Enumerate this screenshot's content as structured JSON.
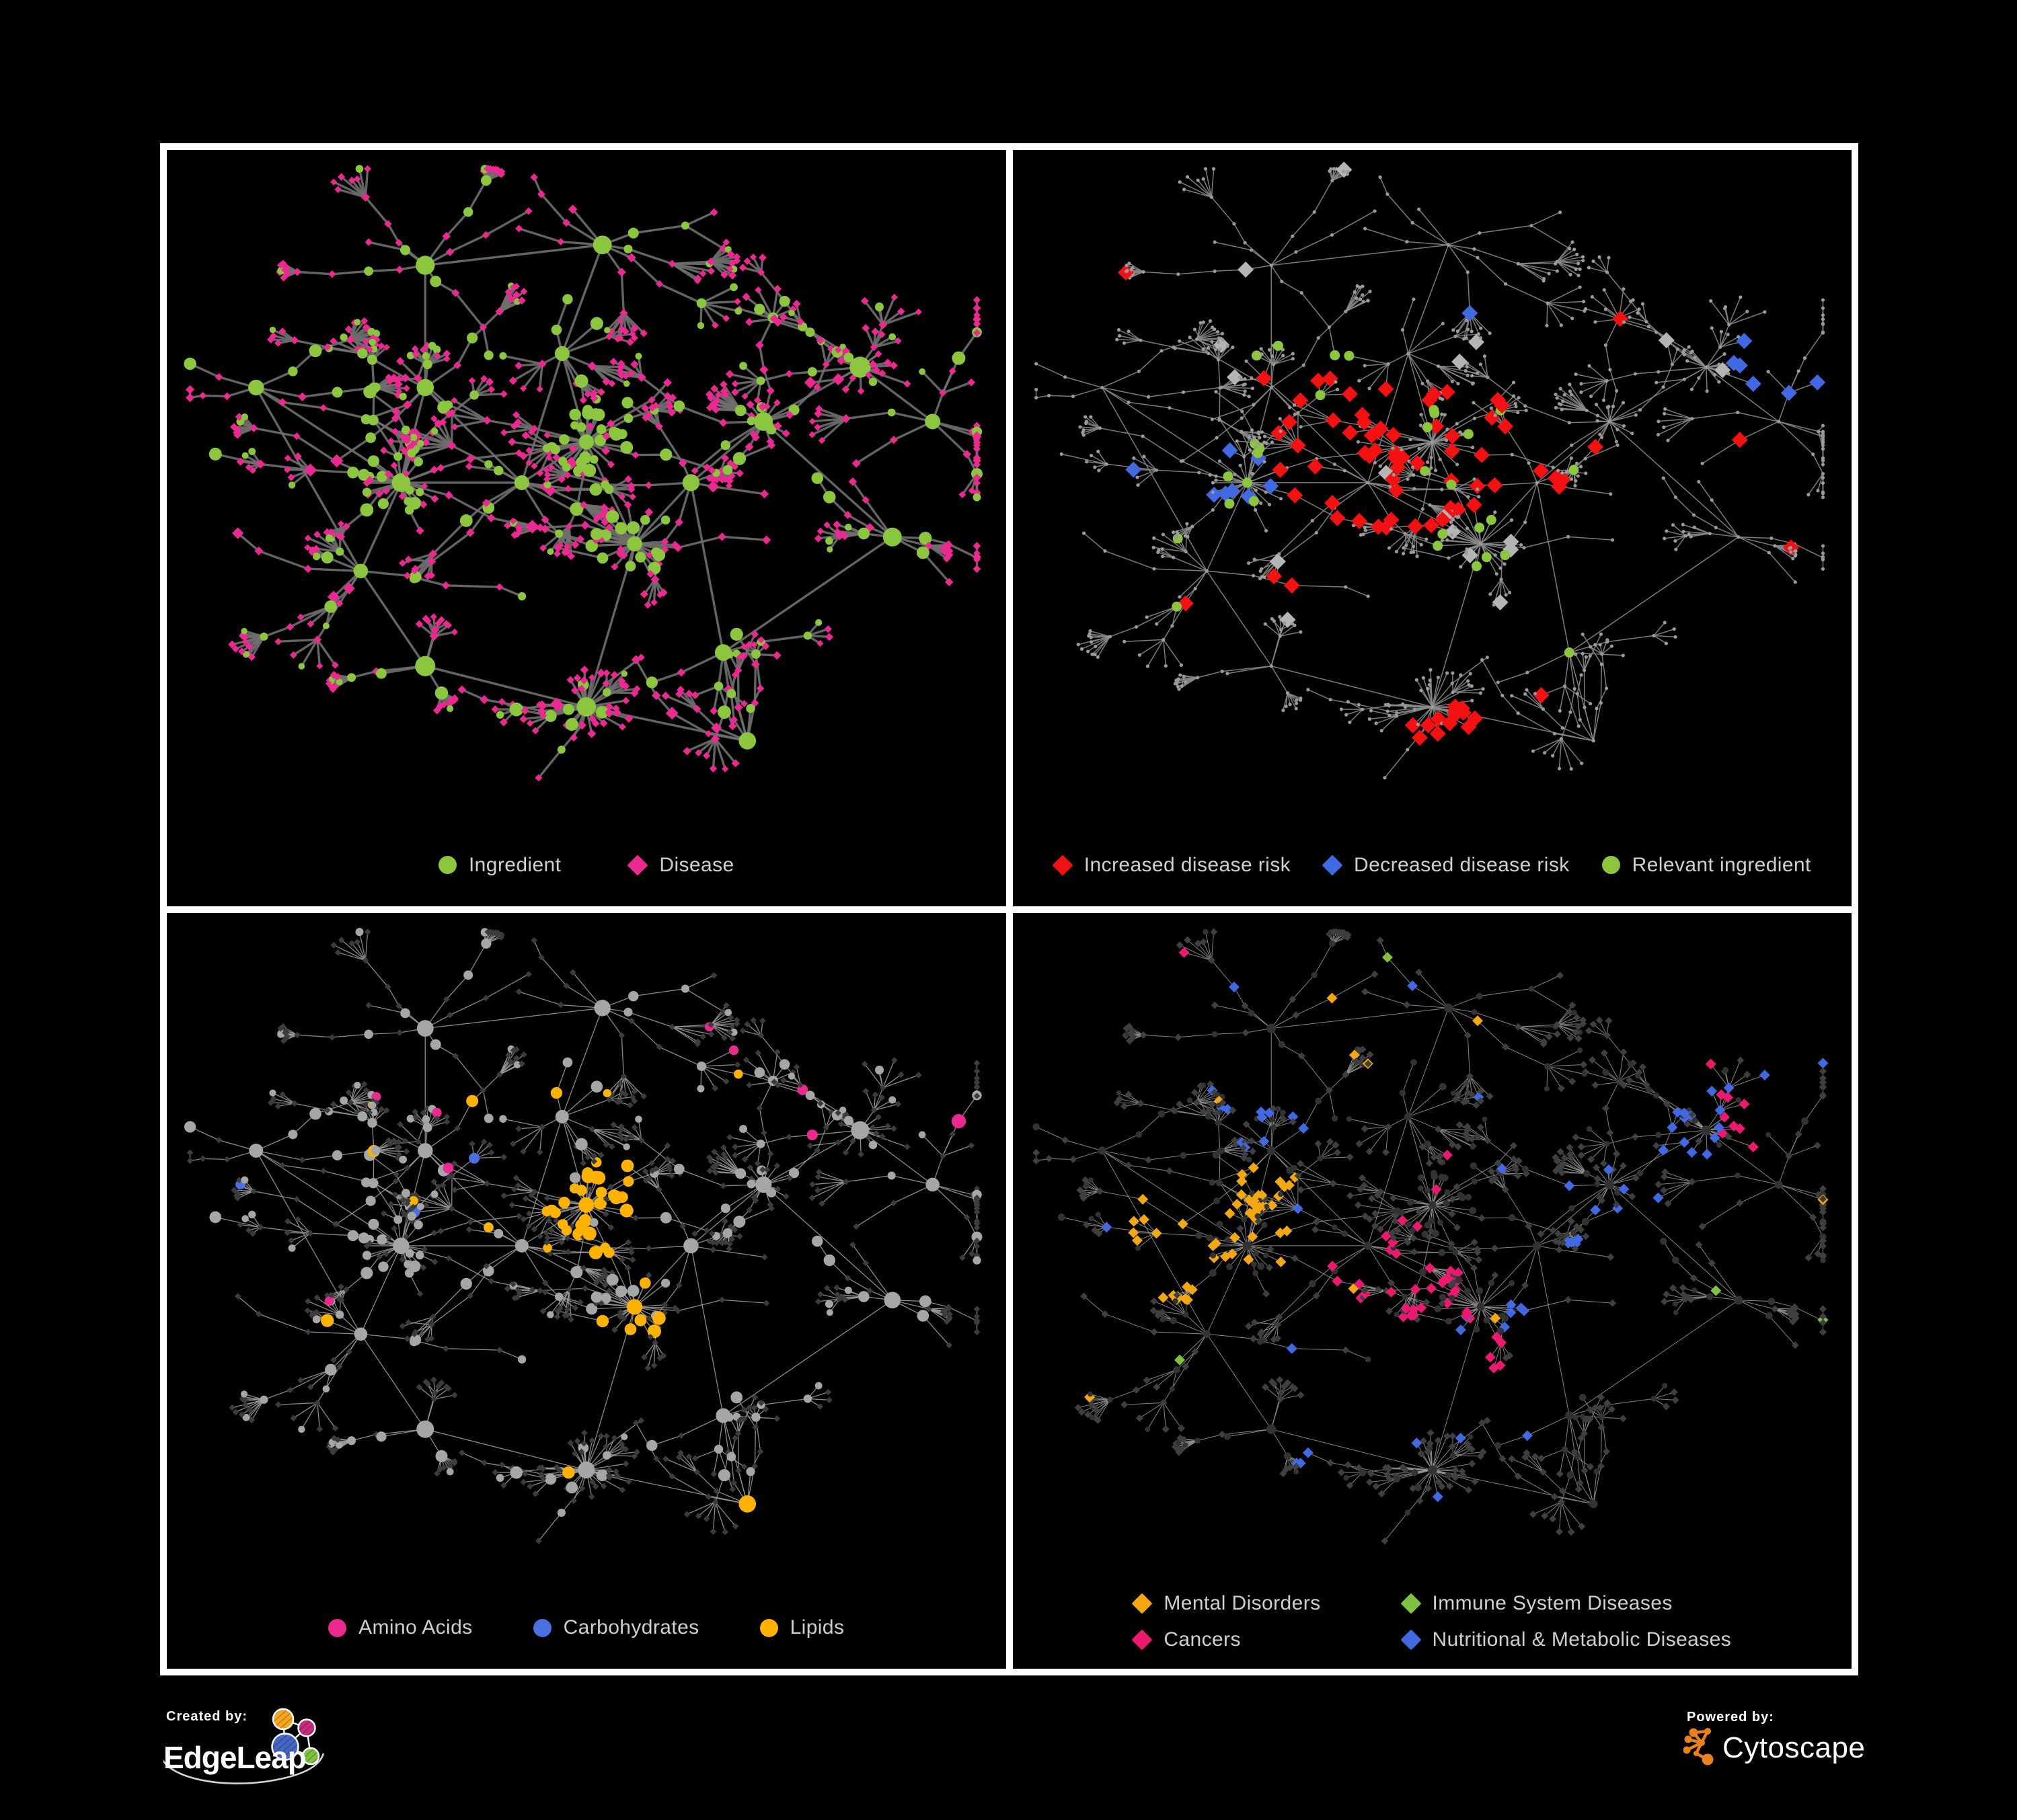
{
  "figure": {
    "background": "#000000",
    "frame_color": "#ffffff"
  },
  "panels": [
    {
      "name": "ingredient-disease-network",
      "legend_gap": 100,
      "legend": [
        {
          "label": "Ingredient",
          "shape": "circle",
          "color": "#8CC63F"
        },
        {
          "label": "Disease",
          "shape": "diamond",
          "color": "#EC2891"
        }
      ]
    },
    {
      "name": "disease-risk-network",
      "legend_gap": 48,
      "legend": [
        {
          "label": "Increased disease risk",
          "shape": "diamond",
          "color": "#F31112"
        },
        {
          "label": "Decreased disease risk",
          "shape": "diamond",
          "color": "#4169E1"
        },
        {
          "label": "Relevant ingredient",
          "shape": "circle",
          "color": "#8CC63F"
        }
      ]
    },
    {
      "name": "macronutrient-network",
      "legend_gap": 90,
      "legend": [
        {
          "label": "Amino Acids",
          "shape": "circle",
          "color": "#EC2891"
        },
        {
          "label": "Carbohydrates",
          "shape": "circle",
          "color": "#4A6FE1"
        },
        {
          "label": "Lipids",
          "shape": "circle",
          "color": "#FFB300"
        }
      ]
    },
    {
      "name": "disease-category-network",
      "legend_columns": 2,
      "legend": [
        {
          "label": "Mental Disorders",
          "shape": "diamond",
          "color": "#F3A712"
        },
        {
          "label": "Immune System Diseases",
          "shape": "diamond",
          "color": "#7EC242"
        },
        {
          "label": "Cancers",
          "shape": "diamond",
          "color": "#EB1A70"
        },
        {
          "label": "Nutritional & Metabolic Diseases",
          "shape": "diamond",
          "color": "#4169E1"
        }
      ]
    }
  ],
  "footer": {
    "created_by": "Created by:",
    "created_by_name": "EdgeLeap",
    "powered_by": "Powered by:",
    "powered_by_name": "Cytoscape",
    "edgeleap_colors": {
      "orange": "#F5A623",
      "magenta": "#C72B7E",
      "blue": "#4467C4",
      "green": "#7EC242"
    },
    "cytoscape_color": "#E8821E"
  },
  "network": {
    "seed": 13,
    "hubs": [
      [
        0.27,
        0.47,
        3.0
      ],
      [
        0.3,
        0.33,
        2.2
      ],
      [
        0.5,
        0.41,
        2.4
      ],
      [
        0.42,
        0.47,
        2.6
      ],
      [
        0.47,
        0.28,
        2.0
      ],
      [
        0.22,
        0.6,
        1.8
      ],
      [
        0.56,
        0.56,
        2.0
      ],
      [
        0.63,
        0.47,
        1.6
      ],
      [
        0.72,
        0.38,
        1.5
      ],
      [
        0.84,
        0.3,
        1.6
      ],
      [
        0.5,
        0.8,
        1.6
      ],
      [
        0.3,
        0.74,
        1.5
      ],
      [
        0.67,
        0.72,
        1.5
      ],
      [
        0.09,
        0.33,
        1.2
      ],
      [
        0.52,
        0.12,
        1.3
      ],
      [
        0.7,
        0.85,
        1.1
      ],
      [
        0.88,
        0.55,
        1.0
      ],
      [
        0.3,
        0.15,
        1.3
      ],
      [
        0.93,
        0.38,
        1.0
      ]
    ],
    "hub_links": [
      [
        0,
        1
      ],
      [
        0,
        3
      ],
      [
        3,
        2
      ],
      [
        2,
        4
      ],
      [
        4,
        14
      ],
      [
        1,
        17
      ],
      [
        0,
        5
      ],
      [
        5,
        11
      ],
      [
        11,
        10
      ],
      [
        3,
        6
      ],
      [
        6,
        10
      ],
      [
        6,
        7
      ],
      [
        7,
        8
      ],
      [
        8,
        9
      ],
      [
        9,
        18
      ],
      [
        7,
        12
      ],
      [
        12,
        15
      ],
      [
        12,
        16
      ],
      [
        13,
        0
      ],
      [
        13,
        5
      ],
      [
        2,
        6
      ],
      [
        3,
        4
      ],
      [
        16,
        8
      ],
      [
        10,
        15
      ],
      [
        1,
        3
      ],
      [
        17,
        14
      ]
    ],
    "bursts": [
      [
        2,
        30,
        0.05,
        0.72
      ],
      [
        6,
        26,
        0.05,
        0.3
      ],
      [
        10,
        32,
        0.055,
        0.12
      ],
      [
        0,
        24,
        0.045,
        0.5
      ],
      [
        8,
        14,
        0.035,
        0.2
      ],
      [
        9,
        16,
        0.04,
        0.15
      ]
    ],
    "panel_styles": [
      {
        "edge": "#6f6f6f",
        "edge_width": 3.4,
        "ing": "#8CC63F",
        "dis": "#EC2891"
      },
      {
        "edge": "#8a8a8a",
        "edge_width": 1.5,
        "base": "#9a9a9a"
      },
      {
        "edge": "#9a9a9a",
        "edge_width": 1.3,
        "ing": "#a6a6a6",
        "dis": "#3c3c3c"
      },
      {
        "edge": "#949494",
        "edge_width": 1.0,
        "ing": "#333333",
        "dis": "#3f3f3f"
      }
    ],
    "panel_rules": [
      [],
      [
        {
          "kind": "dis",
          "color": "#F31112",
          "anchors": [
            [
              0.42,
              0.45,
              0.12,
              0.5
            ],
            [
              0.54,
              0.42,
              0.09,
              0.45
            ],
            [
              0.34,
              0.35,
              0.06,
              0.35
            ],
            [
              0.62,
              0.5,
              0.06,
              0.5
            ],
            [
              0.52,
              0.84,
              0.05,
              0.85
            ],
            [
              0.7,
              0.6,
              0.05,
              0.4
            ]
          ],
          "scatter": 0.012
        },
        {
          "kind": "dis",
          "color": "#4169E1",
          "anchors": [
            [
              0.26,
              0.47,
              0.055,
              0.55
            ],
            [
              0.93,
              0.3,
              0.06,
              0.85
            ]
          ],
          "scatter": 0.004
        },
        {
          "kind": "dis",
          "color": "#B5B5B5",
          "anchors": [
            [
              0.42,
              0.47,
              0.25,
              0.05
            ]
          ],
          "scatter": 0.007
        },
        {
          "kind": "ing",
          "color": "#8CC63F",
          "anchors": [
            [
              0.42,
              0.44,
              0.22,
              0.18
            ],
            [
              0.6,
              0.6,
              0.1,
              0.35
            ],
            [
              0.27,
              0.45,
              0.08,
              0.25
            ]
          ],
          "scatter": 0.02
        }
      ],
      [
        {
          "kind": "ing",
          "color": "#FFB300",
          "anchors": [
            [
              0.5,
              0.41,
              0.08,
              0.85
            ],
            [
              0.42,
              0.45,
              0.06,
              0.4
            ],
            [
              0.56,
              0.57,
              0.05,
              0.5
            ],
            [
              0.44,
              0.3,
              0.06,
              0.3
            ]
          ],
          "scatter": 0.05
        },
        {
          "kind": "ing",
          "color": "#4A6FE1",
          "anchors": [
            [
              0.47,
              0.39,
              0.06,
              0.3
            ],
            [
              0.36,
              0.3,
              0.05,
              0.25
            ]
          ],
          "scatter": 0.012
        },
        {
          "kind": "ing",
          "color": "#EC2891",
          "anchors": [
            [
              0.24,
              0.62,
              0.12,
              0.15
            ],
            [
              0.56,
              0.72,
              0.1,
              0.15
            ]
          ],
          "scatter": 0.05
        }
      ],
      [
        {
          "kind": "dis",
          "color": "#F3A712",
          "anchors": [
            [
              0.22,
              0.46,
              0.11,
              0.9
            ],
            [
              0.3,
              0.4,
              0.06,
              0.4
            ],
            [
              0.15,
              0.72,
              0.05,
              0.3
            ],
            [
              0.38,
              0.2,
              0.04,
              0.3
            ]
          ],
          "scatter": 0.01
        },
        {
          "kind": "dis",
          "color": "#EB1A70",
          "anchors": [
            [
              0.45,
              0.52,
              0.09,
              0.6
            ],
            [
              0.56,
              0.63,
              0.07,
              0.55
            ],
            [
              0.9,
              0.28,
              0.05,
              0.8
            ]
          ],
          "scatter": 0.012
        },
        {
          "kind": "dis",
          "color": "#4169E1",
          "anchors": [
            [
              0.57,
              0.57,
              0.05,
              0.8
            ],
            [
              0.72,
              0.42,
              0.07,
              0.4
            ],
            [
              0.85,
              0.3,
              0.07,
              0.5
            ],
            [
              0.3,
              0.28,
              0.07,
              0.3
            ],
            [
              0.48,
              0.08,
              0.06,
              0.4
            ],
            [
              0.35,
              0.82,
              0.06,
              0.3
            ]
          ],
          "scatter": 0.03
        },
        {
          "kind": "dis",
          "color": "#7EC242",
          "anchors": [],
          "scatter": 0.018
        }
      ]
    ]
  }
}
